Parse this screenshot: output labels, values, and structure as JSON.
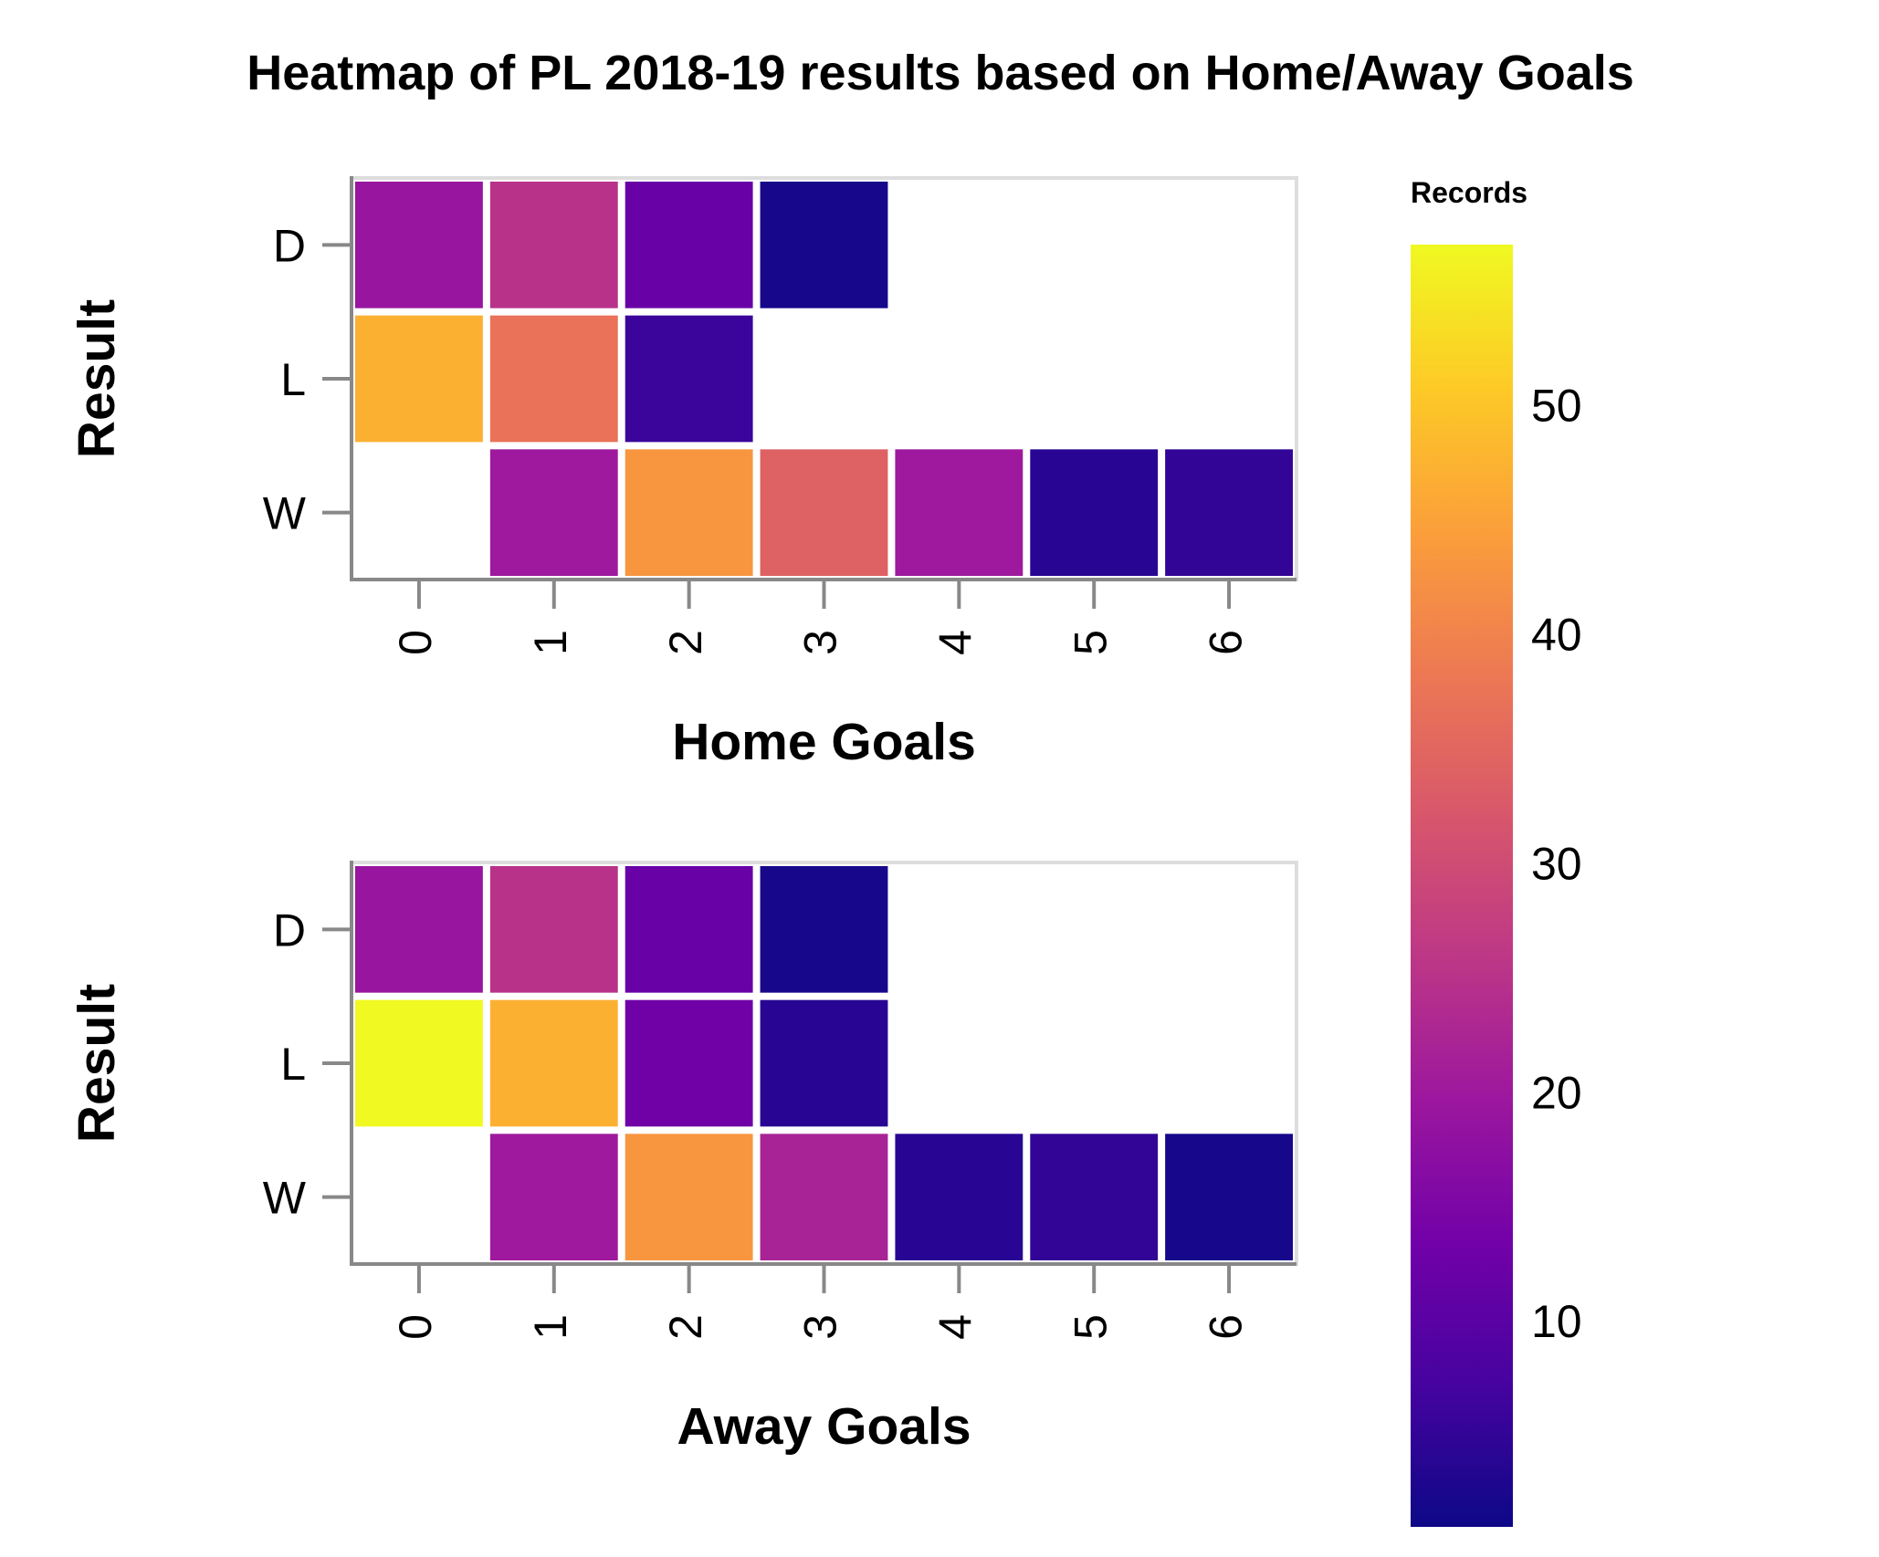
{
  "chart_data": {
    "title": "Heatmap of PL 2018-19 results based on Home/Away Goals",
    "type": "heatmap",
    "legend": {
      "title": "Records",
      "placement": "right",
      "ticks": [
        "10",
        "20",
        "30",
        "40",
        "50"
      ],
      "domain": [
        1,
        57
      ],
      "colorscale": [
        "#0d0887",
        "#46039f",
        "#7201a8",
        "#9c179e",
        "#bd3786",
        "#d8576b",
        "#ed7953",
        "#fb9f3a",
        "#fdca26",
        "#f0f921"
      ]
    },
    "panels": [
      {
        "xlabel": "Home Goals",
        "ylabel": "Result",
        "x_categories": [
          "0",
          "1",
          "2",
          "3",
          "4",
          "5",
          "6"
        ],
        "y_categories": [
          "D",
          "L",
          "W"
        ],
        "values": [
          [
            19,
            25,
            12,
            2,
            null,
            null,
            null
          ],
          [
            47,
            37,
            6,
            null,
            null,
            null,
            null
          ],
          [
            null,
            20,
            43,
            34,
            20,
            4,
            5
          ]
        ]
      },
      {
        "xlabel": "Away Goals",
        "ylabel": "Result",
        "x_categories": [
          "0",
          "1",
          "2",
          "3",
          "4",
          "5",
          "6"
        ],
        "y_categories": [
          "D",
          "L",
          "W"
        ],
        "values": [
          [
            19,
            25,
            12,
            2,
            null,
            null,
            null
          ],
          [
            57,
            47,
            13,
            4,
            null,
            null,
            null
          ],
          [
            null,
            20,
            43,
            22,
            4,
            5,
            2
          ]
        ]
      }
    ]
  }
}
